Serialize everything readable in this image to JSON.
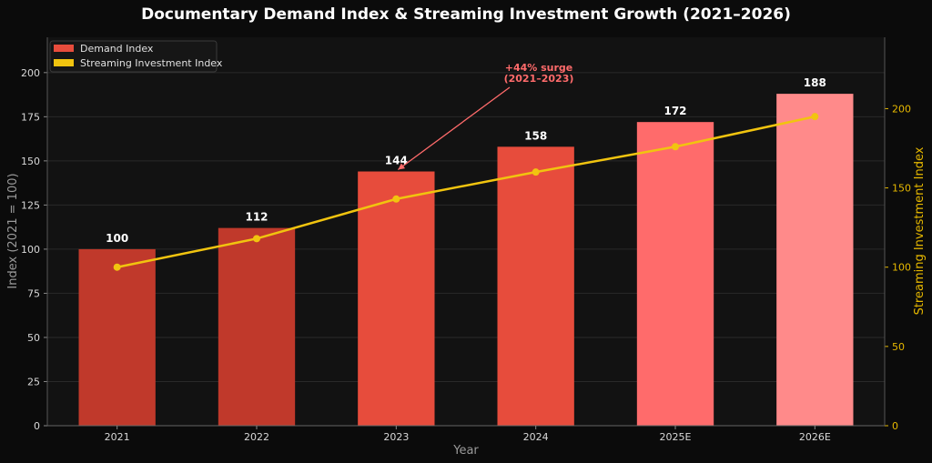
{
  "chart_data": {
    "type": "bar",
    "title": "Documentary Demand Index & Streaming Investment Growth (2021–2026)",
    "xlabel": "Year",
    "ylabel": "Index (2021 = 100)",
    "y2label": "Streaming Investment Index",
    "categories": [
      "2021",
      "2022",
      "2023",
      "2024",
      "2025E",
      "2026E"
    ],
    "ylim": [
      0,
      220
    ],
    "y2lim": [
      0,
      245
    ],
    "yticks": [
      "0",
      "25",
      "50",
      "75",
      "100",
      "125",
      "150",
      "175",
      "200"
    ],
    "y2ticks": [
      "0",
      "50",
      "100",
      "150",
      "200"
    ],
    "grid": true,
    "legend_position": "top-left",
    "series": [
      {
        "name": "Demand Index",
        "type": "bar",
        "axis": "left",
        "values": [
          100,
          112,
          144,
          158,
          172,
          188
        ],
        "labels": [
          "100",
          "112",
          "144",
          "158",
          "172",
          "188"
        ],
        "colors": [
          "#c0392b",
          "#c0392b",
          "#e74c3c",
          "#e74c3c",
          "#ff6b6b",
          "#ff8a8a"
        ]
      },
      {
        "name": "Streaming Investment Index",
        "type": "line",
        "axis": "right",
        "values": [
          100,
          118,
          143,
          160,
          176,
          195
        ],
        "color": "#f1c40f"
      }
    ],
    "annotation": {
      "lines": [
        "+44% surge",
        "(2021–2023)"
      ],
      "target_category": "2023",
      "target_value": 144,
      "color": "#ff6b6b"
    }
  }
}
